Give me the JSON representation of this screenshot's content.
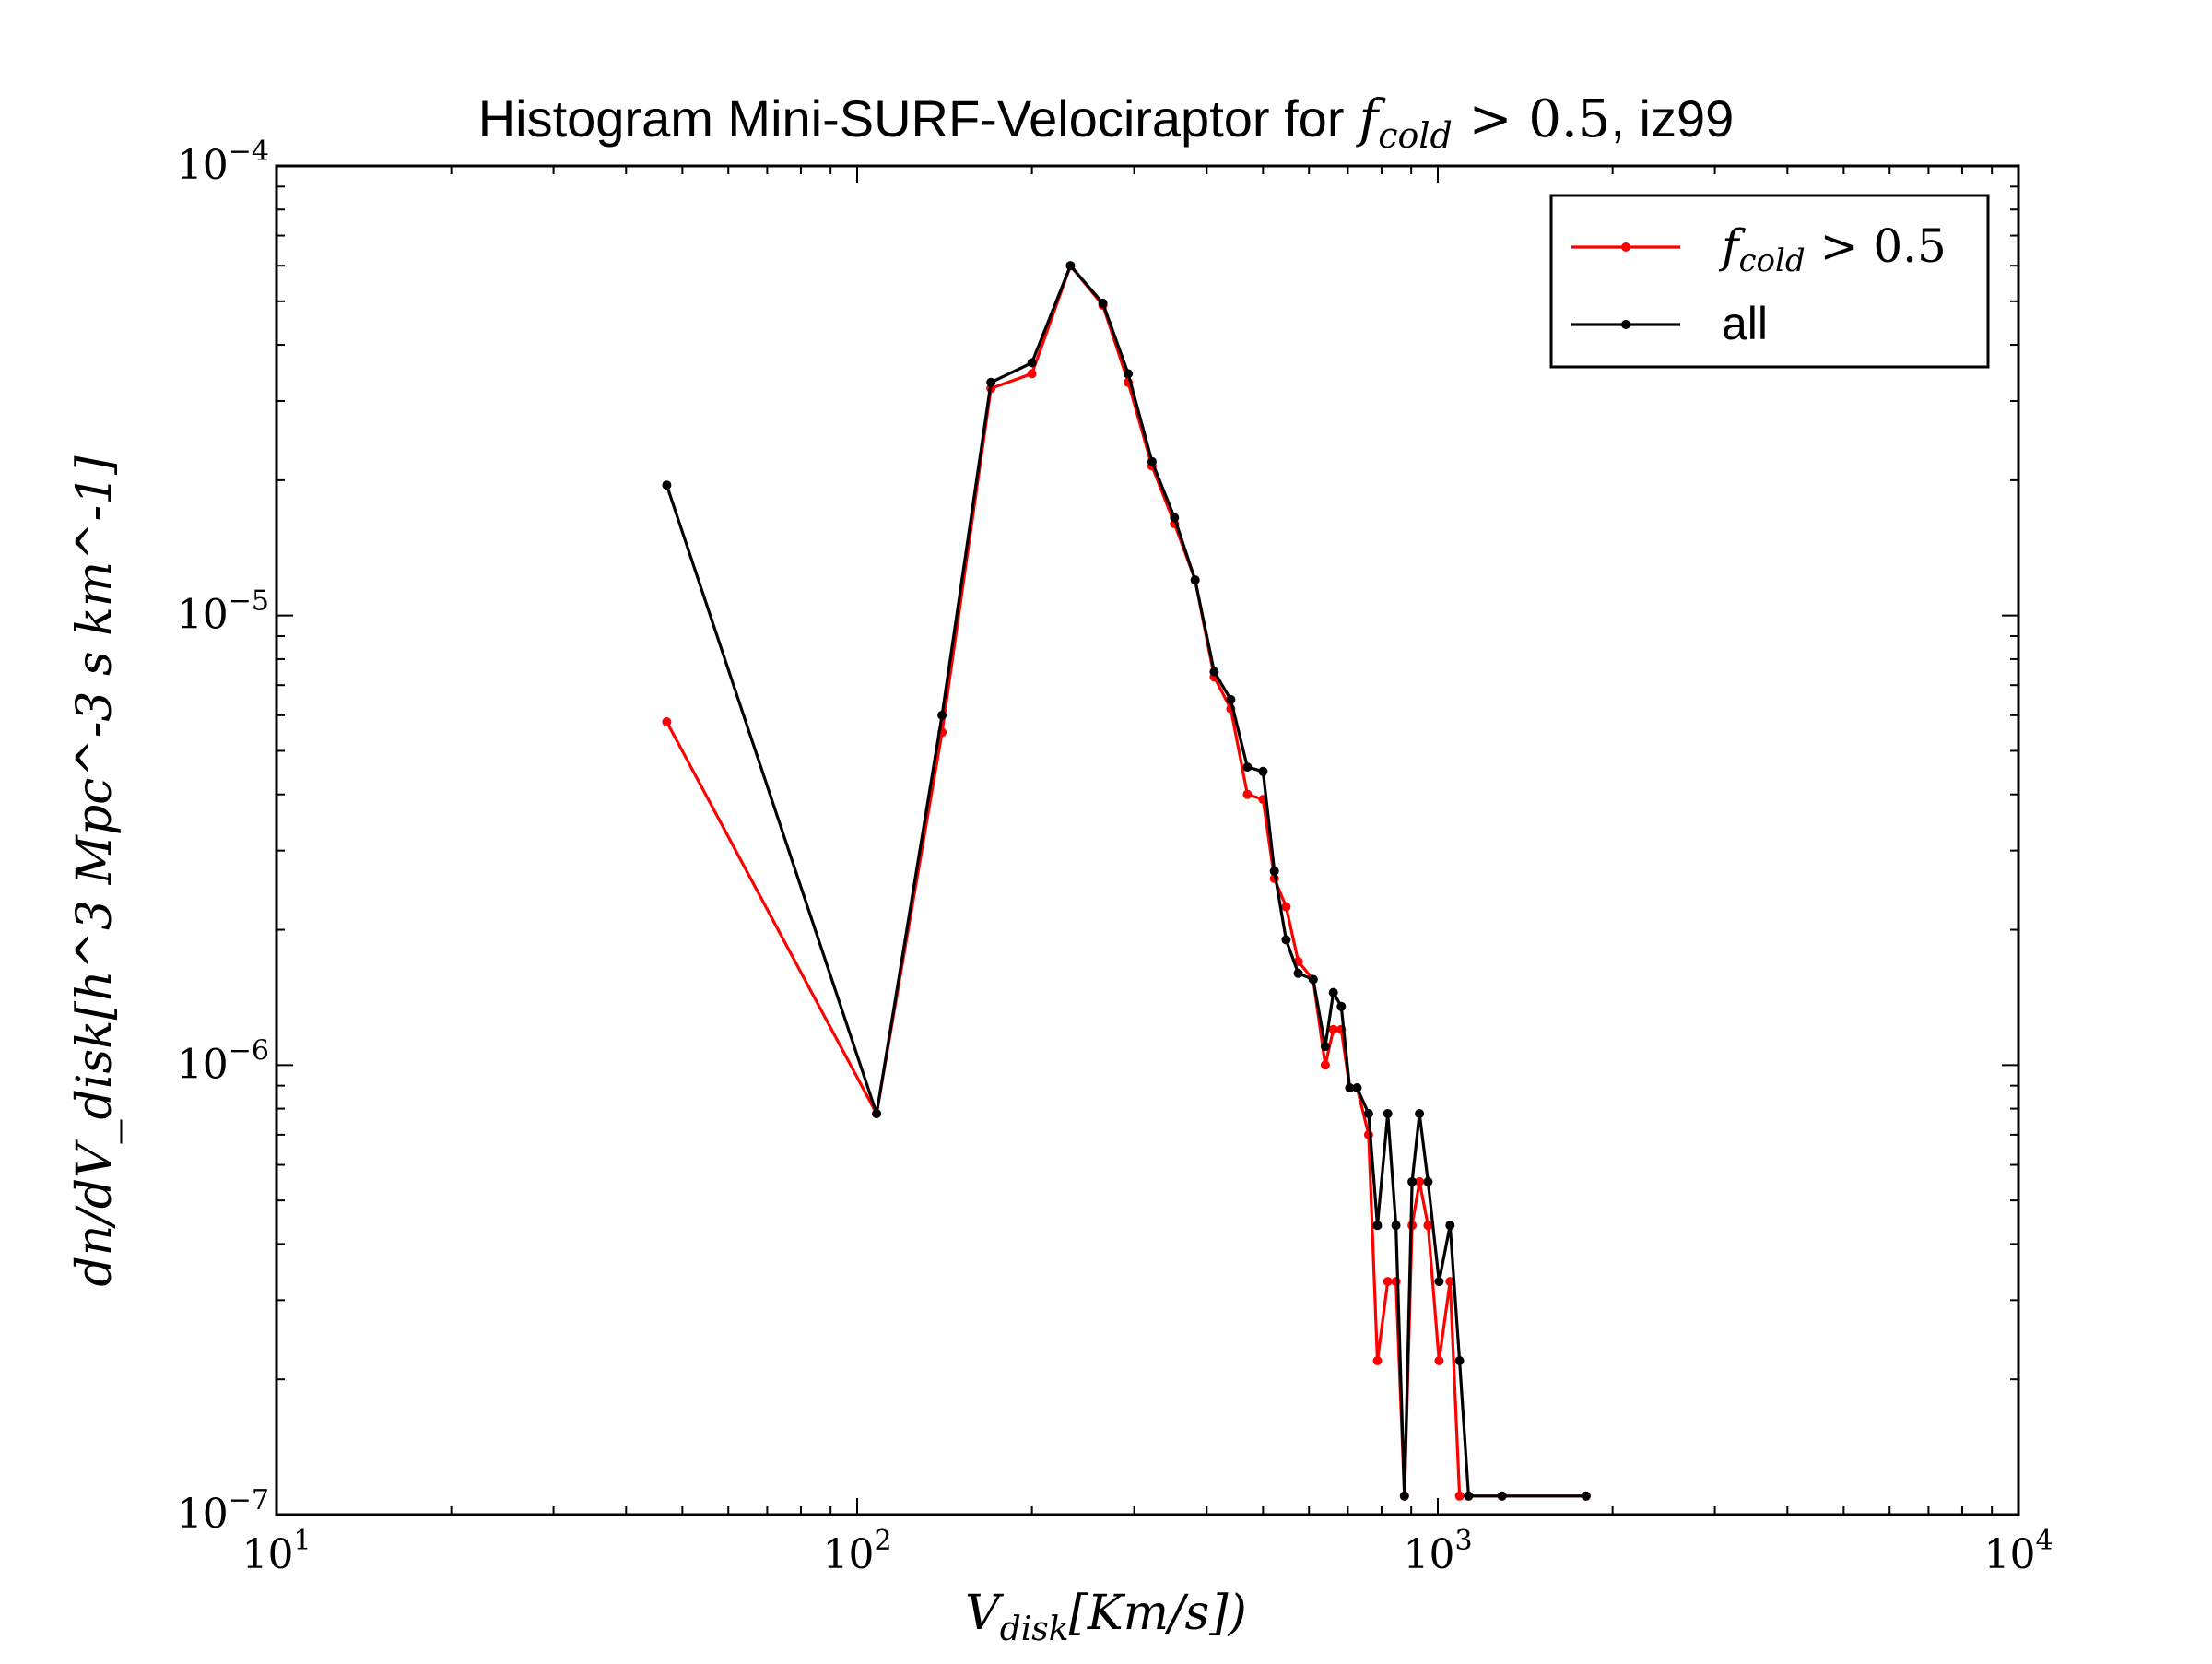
{
  "chart_data": {
    "type": "line",
    "title": "Histogram Mini-SURF-Velociraptor for",
    "title_math": {
      "var": "f",
      "sub": "cold",
      "rel": " > 0.5"
    },
    "title_suffix": ", iz99",
    "xlabel": {
      "var": "V",
      "sub": "disk",
      "rest": "[Km/s])"
    },
    "ylabel": "dn/dV_disk[h^3 Mpc^-3 s km^-1]",
    "x_scale": "log",
    "y_scale": "log",
    "xlim": [
      10,
      10000
    ],
    "ylim": [
      1e-07,
      0.0001
    ],
    "x_ticks": [
      {
        "value": 10,
        "base": "10",
        "exp": "1"
      },
      {
        "value": 100,
        "base": "10",
        "exp": "2"
      },
      {
        "value": 1000,
        "base": "10",
        "exp": "3"
      },
      {
        "value": 10000,
        "base": "10",
        "exp": "4"
      }
    ],
    "y_ticks": [
      {
        "value": 1e-07,
        "base": "10",
        "exp": "−7"
      },
      {
        "value": 1e-06,
        "base": "10",
        "exp": "−6"
      },
      {
        "value": 1e-05,
        "base": "10",
        "exp": "−5"
      },
      {
        "value": 0.0001,
        "base": "10",
        "exp": "−4"
      }
    ],
    "grid": false,
    "legend_position": "top-right",
    "series": [
      {
        "name": "f_cold > 0.5",
        "legend": {
          "var": "f",
          "sub": "cold",
          "rel": " > 0.5"
        },
        "color": "#ff0000",
        "x": [
          47,
          108,
          140,
          170,
          200,
          233,
          265,
          293,
          322,
          352,
          382,
          412,
          440,
          470,
          500,
          523,
          548,
          575,
          610,
          640,
          661,
          682,
          705,
          726,
          760,
          787,
          820,
          847,
          876,
          903,
          930,
          962,
          1005,
          1050,
          1090,
          1130,
          1290,
          1800
        ],
        "y": [
          5.8e-06,
          7.8e-07,
          5.5e-06,
          3.2e-05,
          3.45e-05,
          6e-05,
          4.9e-05,
          3.3e-05,
          2.15e-05,
          1.6e-05,
          1.2e-05,
          7.3e-06,
          6.2e-06,
          4e-06,
          3.9e-06,
          2.6e-06,
          2.25e-06,
          1.7e-06,
          1.55e-06,
          1e-06,
          1.2e-06,
          1.2e-06,
          8.9e-07,
          8.9e-07,
          7e-07,
          2.2e-07,
          3.3e-07,
          3.3e-07,
          1.1e-07,
          4.4e-07,
          5.5e-07,
          4.4e-07,
          2.2e-07,
          3.3e-07,
          1.1e-07,
          1.1e-07,
          1.1e-07,
          1.1e-07
        ]
      },
      {
        "name": "all",
        "legend": {
          "var": "",
          "sub": "",
          "rel": "all"
        },
        "color": "#000000",
        "x": [
          47,
          108,
          140,
          170,
          200,
          233,
          265,
          293,
          322,
          352,
          382,
          412,
          440,
          470,
          500,
          523,
          548,
          575,
          610,
          640,
          661,
          682,
          705,
          726,
          760,
          787,
          820,
          847,
          876,
          903,
          930,
          962,
          1005,
          1050,
          1090,
          1130,
          1290,
          1800
        ],
        "y": [
          1.95e-05,
          7.8e-07,
          6e-06,
          3.3e-05,
          3.65e-05,
          6e-05,
          4.95e-05,
          3.45e-05,
          2.2e-05,
          1.65e-05,
          1.2e-05,
          7.5e-06,
          6.5e-06,
          4.6e-06,
          4.5e-06,
          2.7e-06,
          1.9e-06,
          1.6e-06,
          1.55e-06,
          1.1e-06,
          1.45e-06,
          1.35e-06,
          8.9e-07,
          8.9e-07,
          7.8e-07,
          4.4e-07,
          7.8e-07,
          4.4e-07,
          1.1e-07,
          5.5e-07,
          7.8e-07,
          5.5e-07,
          3.3e-07,
          4.4e-07,
          2.2e-07,
          1.1e-07,
          1.1e-07,
          1.1e-07
        ]
      }
    ]
  }
}
